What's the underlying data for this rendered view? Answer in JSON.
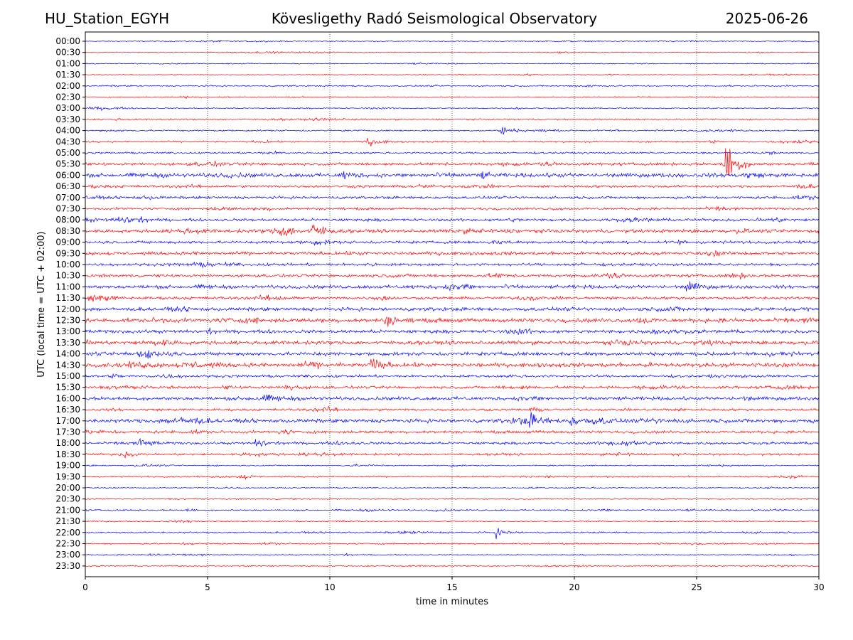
{
  "header": {
    "station": "HU_Station_EGYH",
    "observatory": "Kövesligethy Radó Seismological Observatory",
    "date": "2025-06-26"
  },
  "chart_data": {
    "type": "line",
    "subtype": "helicorder",
    "xlabel": "time in minutes",
    "ylabel": "UTC (local time = UTC + 02:00)",
    "xlim": [
      0,
      30
    ],
    "x_ticks": [
      0,
      5,
      10,
      15,
      20,
      25,
      30
    ],
    "grid": "vertical dotted lines at x ticks",
    "trace_colors": [
      "#0000ff",
      "#ff0000"
    ],
    "rows": [
      "00:00",
      "00:30",
      "01:00",
      "01:30",
      "02:00",
      "02:30",
      "03:00",
      "03:30",
      "04:00",
      "04:30",
      "05:00",
      "05:30",
      "06:00",
      "06:30",
      "07:00",
      "07:30",
      "08:00",
      "08:30",
      "09:00",
      "09:30",
      "10:00",
      "10:30",
      "11:00",
      "11:30",
      "12:00",
      "12:30",
      "13:00",
      "13:30",
      "14:00",
      "14:30",
      "15:00",
      "15:30",
      "16:00",
      "16:30",
      "17:00",
      "17:30",
      "18:00",
      "18:30",
      "19:00",
      "19:30",
      "20:00",
      "20:30",
      "21:00",
      "21:30",
      "22:00",
      "22:30",
      "23:00",
      "23:30"
    ],
    "row_noise_level": [
      0.6,
      0.5,
      0.6,
      0.6,
      0.8,
      0.6,
      0.7,
      0.8,
      0.9,
      0.9,
      1.0,
      1.6,
      2.2,
      1.4,
      1.5,
      1.3,
      1.6,
      1.9,
      1.6,
      1.8,
      1.5,
      1.6,
      1.9,
      1.6,
      2.0,
      2.3,
      1.9,
      2.1,
      2.0,
      2.3,
      1.4,
      1.5,
      1.9,
      1.3,
      2.1,
      1.5,
      1.4,
      1.2,
      0.7,
      0.8,
      0.6,
      0.6,
      0.9,
      0.6,
      0.9,
      0.8,
      0.7,
      0.7
    ],
    "events": [
      {
        "row": "04:00",
        "minute": 17.0,
        "amplitude": 6
      },
      {
        "row": "04:30",
        "minute": 11.5,
        "amplitude": 5
      },
      {
        "row": "05:30",
        "minute": 26.2,
        "amplitude": 30
      },
      {
        "row": "06:00",
        "minute": 10.5,
        "amplitude": 5
      },
      {
        "row": "08:30",
        "minute": 9.3,
        "amplitude": 9
      },
      {
        "row": "08:30",
        "minute": 8.0,
        "amplitude": 6
      },
      {
        "row": "11:00",
        "minute": 24.6,
        "amplitude": 7
      },
      {
        "row": "12:30",
        "minute": 12.3,
        "amplitude": 6
      },
      {
        "row": "14:30",
        "minute": 11.7,
        "amplitude": 9
      },
      {
        "row": "15:30",
        "minute": 8.2,
        "amplitude": 5
      },
      {
        "row": "17:00",
        "minute": 18.2,
        "amplitude": 7
      },
      {
        "row": "17:00",
        "minute": 19.8,
        "amplitude": 7
      },
      {
        "row": "18:00",
        "minute": 2.2,
        "amplitude": 6
      },
      {
        "row": "18:00",
        "minute": 7.0,
        "amplitude": 6
      },
      {
        "row": "18:30",
        "minute": 1.5,
        "amplitude": 4
      },
      {
        "row": "19:30",
        "minute": 6.3,
        "amplitude": 4
      },
      {
        "row": "22:00",
        "minute": 16.8,
        "amplitude": 5
      }
    ]
  }
}
